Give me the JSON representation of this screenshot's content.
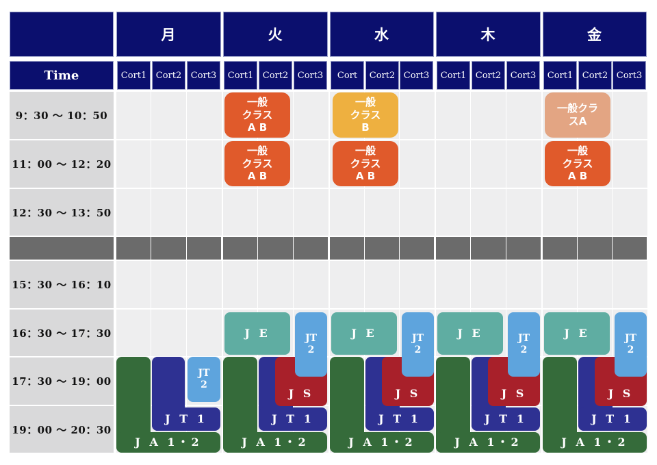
{
  "header": {
    "time_label": "Time",
    "days": [
      "月",
      "火",
      "水",
      "木",
      "金"
    ],
    "courts": [
      [
        "Cort1",
        "Cort2",
        "Cort3"
      ],
      [
        "Cort1",
        "Cort2",
        "Cort3"
      ],
      [
        "Cort",
        "Cort2",
        "Cort3"
      ],
      [
        "Cort1",
        "Cort2",
        "Cort3"
      ],
      [
        "Cort1",
        "Cort2",
        "Cort3"
      ]
    ]
  },
  "time_slots": [
    "9：30 ～ 10：50",
    "11：00 ～ 12：20",
    "12：30 ～ 13：50",
    "15：30 ～ 16：10",
    "16：30 ～ 17：30",
    "17：30 ～ 19：00",
    "19：00 ～ 20：30"
  ],
  "classes": {
    "general_ab": "一般\nクラス\nA B",
    "general_b": "一般\nクラス\nB",
    "general_a": "一般クラ\nスA",
    "je": "J E",
    "jt2": "JT\n2",
    "js": "J S",
    "jt1": "J T 1",
    "ja12": "J A 1・2"
  },
  "colors": {
    "header_bg": "#0b0f6e",
    "time_col_bg": "#d9d9da",
    "grid_bg": "#eeeeef",
    "break_bg": "#6b6b6b",
    "general_ab": "#e05a2b",
    "general_b": "#eeb040",
    "general_a": "#e3a583",
    "je": "#5fada2",
    "jt2": "#5ea4dd",
    "js": "#a8202a",
    "jt1": "#2e3192",
    "ja12": "#356b3a"
  }
}
